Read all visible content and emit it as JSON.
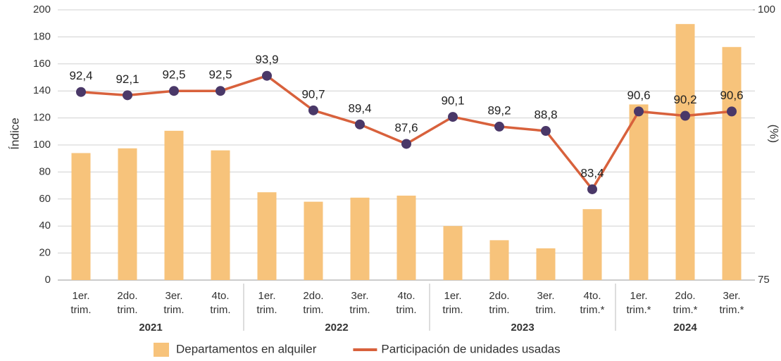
{
  "chart_data": {
    "type": "bar_line",
    "ylabel": "Índice",
    "y2label": "(%)",
    "groups": [
      {
        "name": "2021",
        "categories": [
          "1er. trim.",
          "2do. trim.",
          "3er. trim.",
          "4to. trim."
        ]
      },
      {
        "name": "2022",
        "categories": [
          "1er. trim.",
          "2do. trim.",
          "3er. trim.",
          "4to. trim."
        ]
      },
      {
        "name": "2023",
        "categories": [
          "1er. trim.",
          "2do. trim.",
          "3er. trim.",
          "4to. trim.*"
        ]
      },
      {
        "name": "2024",
        "categories": [
          "1er. trim.*",
          "2do. trim.*",
          "3er. trim.*"
        ]
      }
    ],
    "series": [
      {
        "name": "Departamentos en alquiler",
        "kind": "bar",
        "color": "#f7c37b",
        "values": [
          94,
          97.5,
          110.5,
          96,
          65,
          58,
          61,
          62.5,
          40,
          29.5,
          23.5,
          52.5,
          130,
          189.5,
          172.5
        ]
      },
      {
        "name": "Participación de unidades usadas",
        "kind": "line",
        "axis": "y2",
        "color": "#d8613c",
        "marker_color": "#4a3868",
        "values": [
          92.4,
          92.1,
          92.5,
          92.5,
          93.9,
          90.7,
          89.4,
          87.6,
          90.1,
          89.2,
          88.8,
          83.4,
          90.6,
          90.2,
          90.6
        ],
        "value_labels": [
          "92,4",
          "92,1",
          "92,5",
          "92,5",
          "93,9",
          "90,7",
          "89,4",
          "87,6",
          "90,1",
          "89,2",
          "88,8",
          "83,4",
          "90,6",
          "90,2",
          "90,6"
        ]
      }
    ],
    "ylim": [
      0,
      200
    ],
    "yticks": [
      0,
      20,
      40,
      60,
      80,
      100,
      120,
      140,
      160,
      180,
      200
    ],
    "y2lim": [
      75,
      100
    ],
    "y2ticks": [
      75,
      100
    ],
    "grid": true,
    "legend": "bottom"
  }
}
